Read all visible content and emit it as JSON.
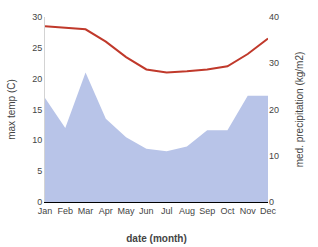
{
  "chart_data": {
    "type": "line",
    "categories": [
      "Jan",
      "Feb",
      "Mar",
      "Apr",
      "May",
      "Jun",
      "Jul",
      "Aug",
      "Sep",
      "Oct",
      "Nov",
      "Dec"
    ],
    "series": [
      {
        "type": "area",
        "axis": "y2",
        "color": "#b8c4e8",
        "values": [
          22.5,
          16.0,
          28.0,
          18.0,
          14.0,
          11.5,
          11.0,
          12.0,
          15.5,
          15.5,
          23.0,
          23.0
        ]
      },
      {
        "type": "line",
        "color": "#c0392b",
        "values": [
          28.5,
          28.2,
          28.0,
          26.0,
          23.5,
          21.5,
          21.0,
          21.2,
          21.5,
          22.0,
          24.0,
          26.5
        ]
      }
    ],
    "xlabel": "date (month)",
    "ylabel": "max temp (C)",
    "y2label": "med. precipitation (kg/m2)",
    "ylim": [
      0,
      30
    ],
    "yticks": [
      0,
      5,
      10,
      15,
      20,
      25,
      30
    ],
    "y2lim": [
      0,
      40
    ],
    "y2ticks": [
      0,
      10,
      20,
      30,
      40
    ],
    "grid": false
  }
}
